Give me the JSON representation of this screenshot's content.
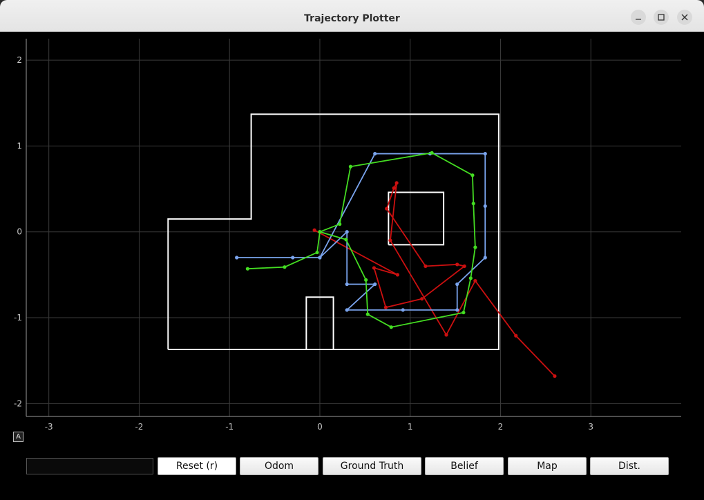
{
  "window": {
    "title": "Trajectory Plotter"
  },
  "plot": {
    "axes": {
      "xrange": [
        -3.25,
        4.0
      ],
      "yrange": [
        -2.15,
        2.25
      ],
      "xticks": [
        -3,
        -2,
        -1,
        0,
        1,
        2,
        3
      ],
      "yticks": [
        -2,
        -1,
        0,
        1,
        2
      ],
      "grid": true,
      "auto_label": "A"
    },
    "colors": {
      "odom": "#cc1010",
      "ground_truth": "#7aa4ee",
      "belief": "#44dd22",
      "map": "#ffffff",
      "grid": "#3a3a3a",
      "tick": "#c8c8c8"
    },
    "map_walls": [
      [
        [
          -1.68,
          -1.37
        ],
        [
          -1.68,
          0.15
        ],
        [
          -0.76,
          0.15
        ],
        [
          -0.76,
          1.37
        ],
        [
          1.98,
          1.37
        ],
        [
          1.98,
          -1.37
        ],
        [
          -1.68,
          -1.37
        ]
      ],
      [
        [
          0.76,
          -0.15
        ],
        [
          1.37,
          -0.15
        ],
        [
          1.37,
          0.46
        ],
        [
          0.76,
          0.46
        ],
        [
          0.76,
          -0.15
        ]
      ],
      [
        [
          -0.15,
          -1.37
        ],
        [
          -0.15,
          -0.76
        ],
        [
          0.15,
          -0.76
        ],
        [
          0.15,
          -1.37
        ]
      ]
    ],
    "odom": [
      [
        -0.06,
        0.02
      ],
      [
        0.86,
        -0.5
      ],
      [
        0.6,
        -0.42
      ],
      [
        0.73,
        -0.88
      ],
      [
        1.13,
        -0.78
      ],
      [
        1.6,
        -0.4
      ],
      [
        1.52,
        -0.38
      ],
      [
        1.17,
        -0.4
      ],
      [
        0.74,
        0.27
      ],
      [
        0.82,
        0.51
      ],
      [
        0.85,
        0.57
      ],
      [
        0.78,
        -0.1
      ],
      [
        1.4,
        -1.2
      ],
      [
        1.72,
        -0.57
      ],
      [
        2.17,
        -1.21
      ],
      [
        2.6,
        -1.68
      ]
    ],
    "ground_truth": [
      [
        -0.92,
        -0.3
      ],
      [
        -0.3,
        -0.3
      ],
      [
        0.0,
        -0.3
      ],
      [
        0.3,
        0.0
      ],
      [
        0.3,
        -0.61
      ],
      [
        0.61,
        -0.61
      ],
      [
        0.3,
        -0.91
      ],
      [
        0.92,
        -0.91
      ],
      [
        1.52,
        -0.91
      ],
      [
        1.52,
        -0.61
      ],
      [
        1.83,
        -0.3
      ],
      [
        1.83,
        0.3
      ],
      [
        1.83,
        0.91
      ],
      [
        1.22,
        0.91
      ],
      [
        0.61,
        0.91
      ],
      [
        0.0,
        -0.3
      ]
    ],
    "belief": [
      [
        -0.8,
        -0.43
      ],
      [
        -0.39,
        -0.41
      ],
      [
        -0.03,
        -0.24
      ],
      [
        0.0,
        0.0
      ],
      [
        0.29,
        -0.09
      ],
      [
        0.51,
        -0.56
      ],
      [
        0.53,
        -0.96
      ],
      [
        0.79,
        -1.11
      ],
      [
        1.59,
        -0.94
      ],
      [
        1.67,
        -0.54
      ],
      [
        1.72,
        -0.18
      ],
      [
        1.7,
        0.33
      ],
      [
        1.69,
        0.66
      ],
      [
        1.24,
        0.92
      ],
      [
        0.34,
        0.76
      ],
      [
        0.22,
        0.09
      ],
      [
        0.0,
        0.0
      ]
    ]
  },
  "toolbar": {
    "status_text": "",
    "buttons": [
      {
        "label": "Reset (r)"
      },
      {
        "label": "Odom"
      },
      {
        "label": "Ground Truth"
      },
      {
        "label": "Belief"
      },
      {
        "label": "Map"
      },
      {
        "label": "Dist."
      }
    ]
  },
  "window_controls": {
    "minimize_icon": "minimize-icon",
    "maximize_icon": "maximize-icon",
    "close_icon": "close-icon"
  }
}
